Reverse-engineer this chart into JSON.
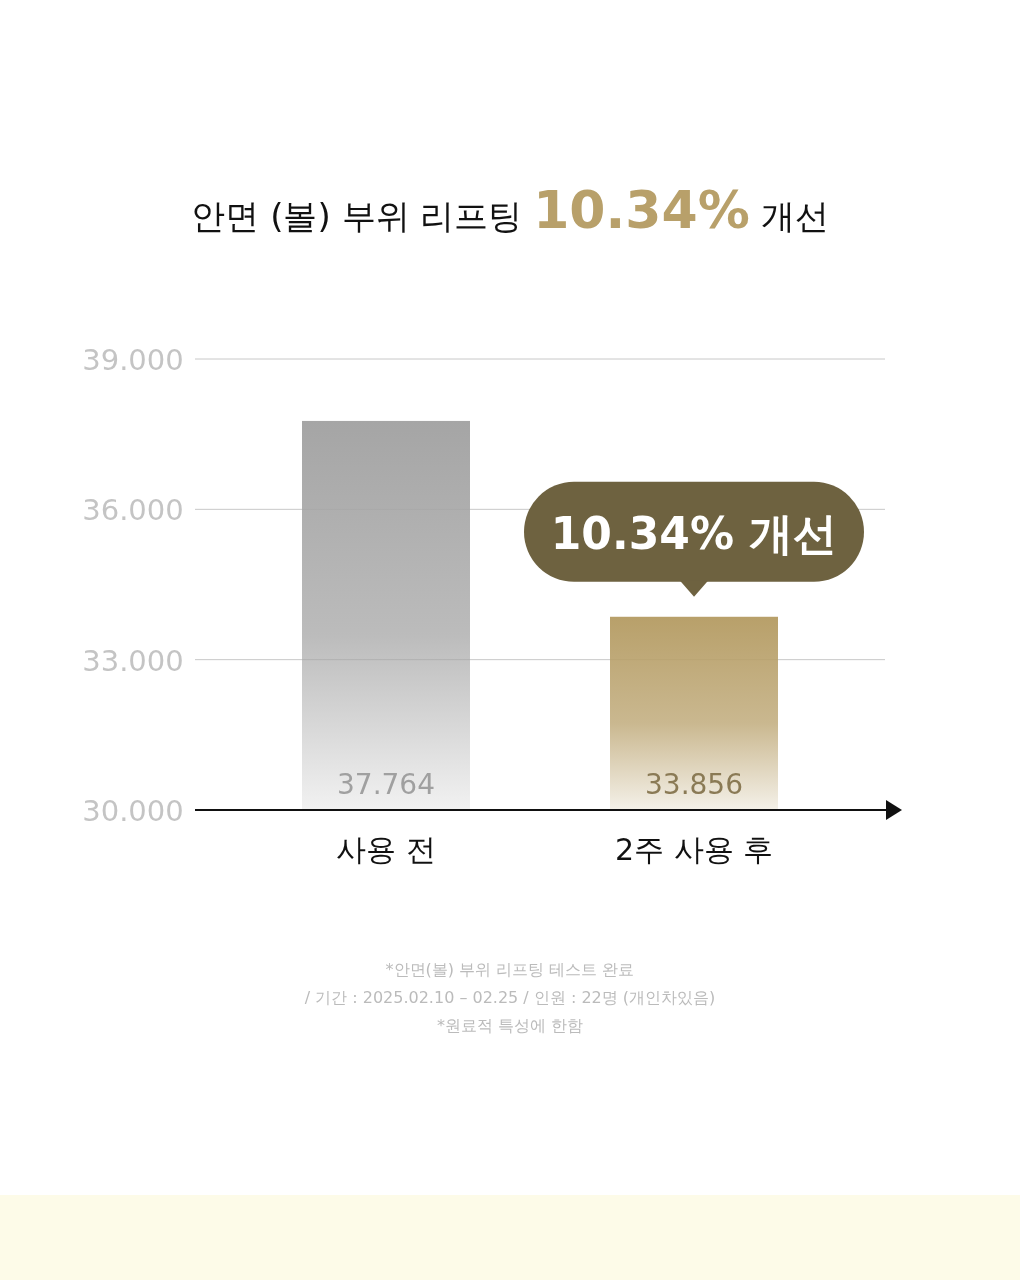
{
  "chart_data": {
    "type": "bar",
    "title": "안면 (볼) 부위 리프팅 **10.34%** 개선",
    "categories": [
      "사용 전",
      "2주 사용 후"
    ],
    "values": [
      37.764,
      33.856
    ],
    "colors": [
      "#a5a5a5",
      "#b8a06a"
    ],
    "ylim": [
      30,
      39
    ],
    "yticks": [
      {
        "value": 30,
        "label": "30.000"
      },
      {
        "value": 33,
        "label": "33.000"
      },
      {
        "value": 36,
        "label": "36.000"
      },
      {
        "value": 39,
        "label": "39.000"
      }
    ],
    "grid": "y",
    "data_labels": true,
    "annotations": [
      {
        "text": "10.34% 개선",
        "x": "2주 사용 후",
        "y": 33.856
      },
      "*안면(볼) 부위 리프팅 테스트 완료",
      "/ 기간 : 2025.02.10 – 02.25 / 인원 : 22명 (개인차있음)",
      "*원료적 특성에 한함"
    ]
  }
}
